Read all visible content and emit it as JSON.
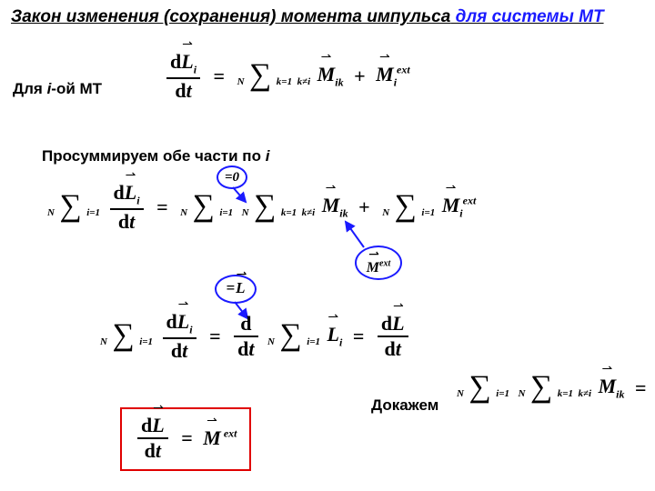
{
  "title": {
    "part1": "Закон изменения (сохранения) момента импульса",
    "part2": " для системы  МТ"
  },
  "labels": {
    "forI": "Для <i>i</i>-ой МТ",
    "sumOver": "Просуммируем обе части по <i>i</i>",
    "prove": "Докажем"
  },
  "callouts": {
    "zero": "=0",
    "eqL": "=L"
  },
  "style": {
    "blue": "#1a1aff",
    "red": "#e00000"
  }
}
